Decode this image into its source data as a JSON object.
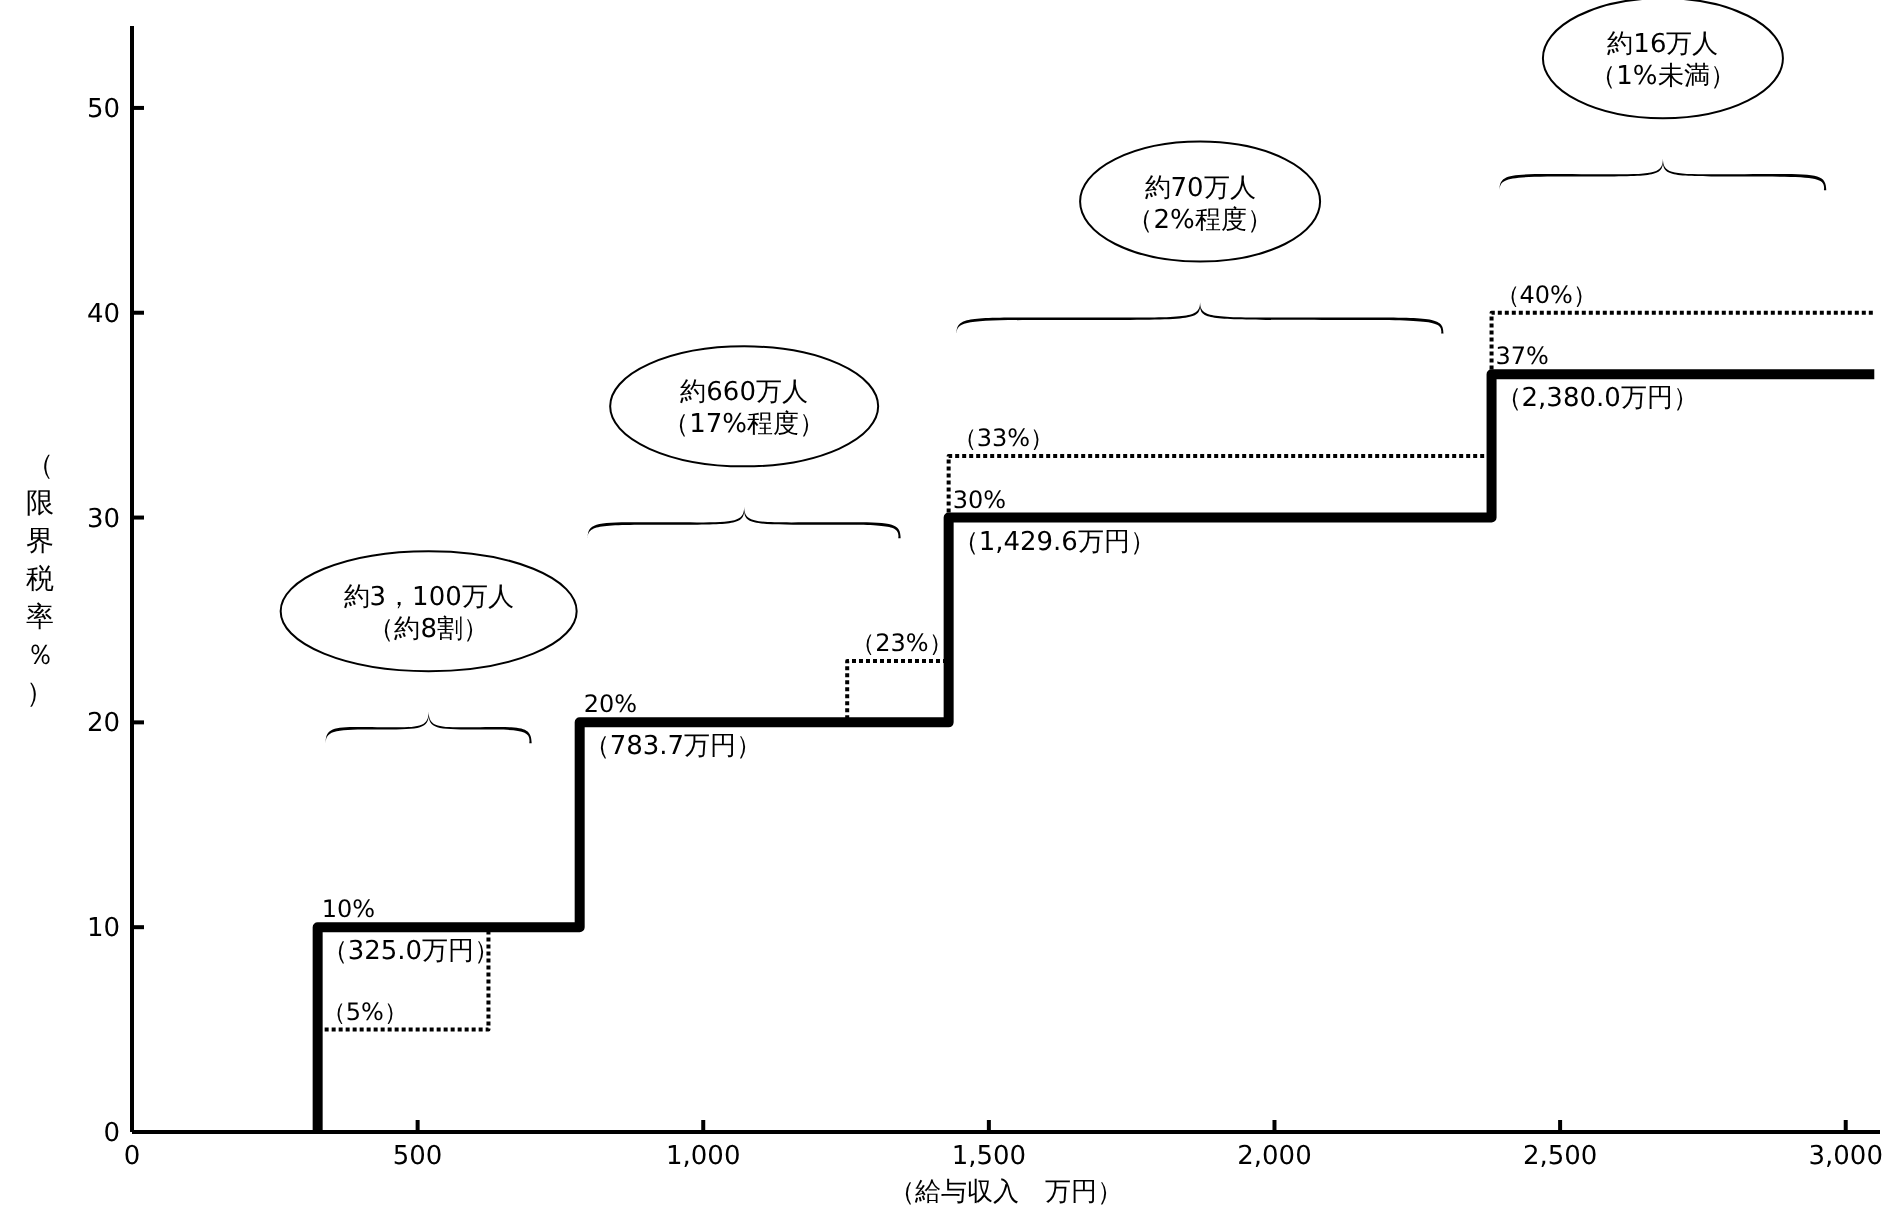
{
  "chart_data": {
    "type": "step",
    "xlabel": "（給与収入　万円）",
    "ylabel": "（限界税率％）",
    "xlim": [
      0,
      3060
    ],
    "ylim": [
      0,
      54
    ],
    "xticks": [
      0,
      500,
      {
        "value": 1000,
        "label": "1,000"
      },
      {
        "value": 1500,
        "label": "1,500"
      },
      {
        "value": 2000,
        "label": "2,000"
      },
      {
        "value": 2500,
        "label": "2,500"
      },
      {
        "value": 3000,
        "label": "3,000"
      }
    ],
    "yticks": [
      0,
      10,
      20,
      30,
      40,
      50
    ],
    "series": [
      {
        "type": "step",
        "color": "#000000",
        "line_style": "dotted",
        "x": [
          325,
          624,
          783.7,
          1252,
          1429.6,
          2380,
          3050
        ],
        "values": [
          5,
          10,
          20,
          23,
          33,
          40,
          40
        ],
        "value_labels": [
          "（5%）",
          null,
          null,
          "（23%）",
          "（33%）",
          "（40%）",
          null
        ]
      },
      {
        "type": "step",
        "color": "#000000",
        "line_style": "solid",
        "x": [
          325,
          325,
          783.7,
          1429.6,
          2380,
          3050
        ],
        "values": [
          0,
          10,
          20,
          30,
          37,
          37
        ],
        "value_labels": [
          null,
          "10%",
          "20%",
          "30%",
          "37%",
          null
        ]
      }
    ],
    "annotations": [
      "約3，100万人",
      "（約8割）",
      "約660万人",
      "（17%程度）",
      "約70万人",
      "（2%程度）",
      "約16万人",
      "（1%未満）",
      {
        "text": "（325.0万円）",
        "x": 325,
        "y": 10
      },
      {
        "text": "（783.7万円）",
        "x": 783.7,
        "y": 20
      },
      {
        "text": "（1,429.6万円）",
        "x": 1429.6,
        "y": 30
      },
      {
        "text": "（2,380.0万円）",
        "x": 2380,
        "y": 37
      }
    ]
  }
}
